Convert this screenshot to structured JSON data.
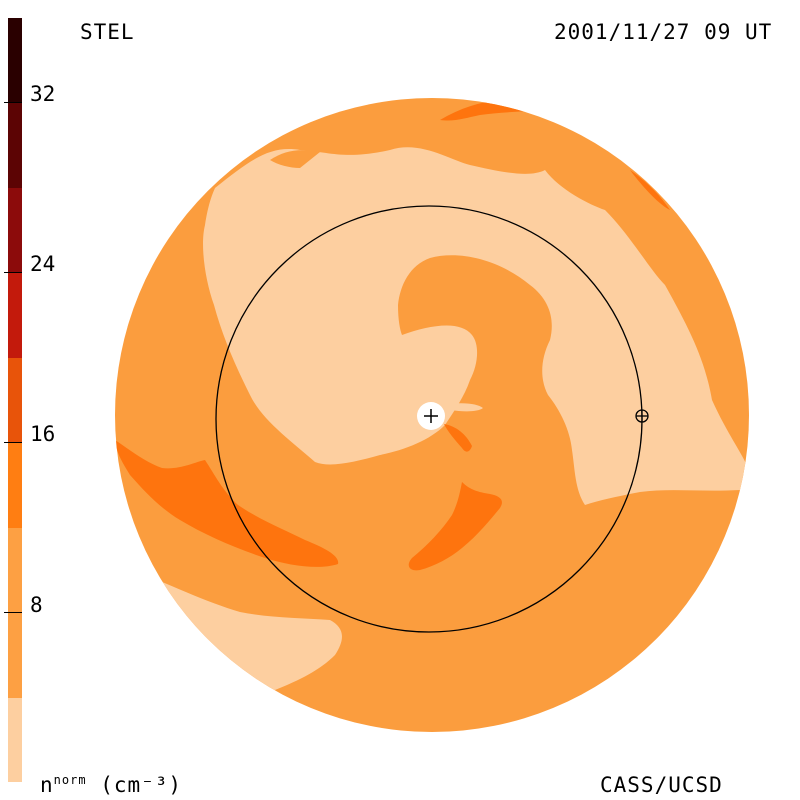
{
  "header": {
    "source_label": "STEL",
    "timestamp": "2001/11/27 09 UT"
  },
  "footer": {
    "unit_label_base": "n",
    "unit_label_sup": "norm",
    "unit_label_units": "(cm⁻³)",
    "credit": "CASS/UCSD"
  },
  "colorbar": {
    "ticks": [
      "32",
      "24",
      "16",
      "8"
    ],
    "colors": [
      "#2a0000",
      "#5c0404",
      "#8c0b0b",
      "#c31a0c",
      "#e8540a",
      "#ff7e12",
      "#fda043",
      "#fdcfa0"
    ]
  },
  "map": {
    "colors": {
      "light": "#fdcfa0",
      "mid": "#fb9d3e",
      "dark": "#fe740e",
      "orbit": "#000000",
      "sun": "#ffffff"
    },
    "sun_icon": "sun-plus-icon",
    "earth_icon": "earth-circle-plus-icon"
  }
}
